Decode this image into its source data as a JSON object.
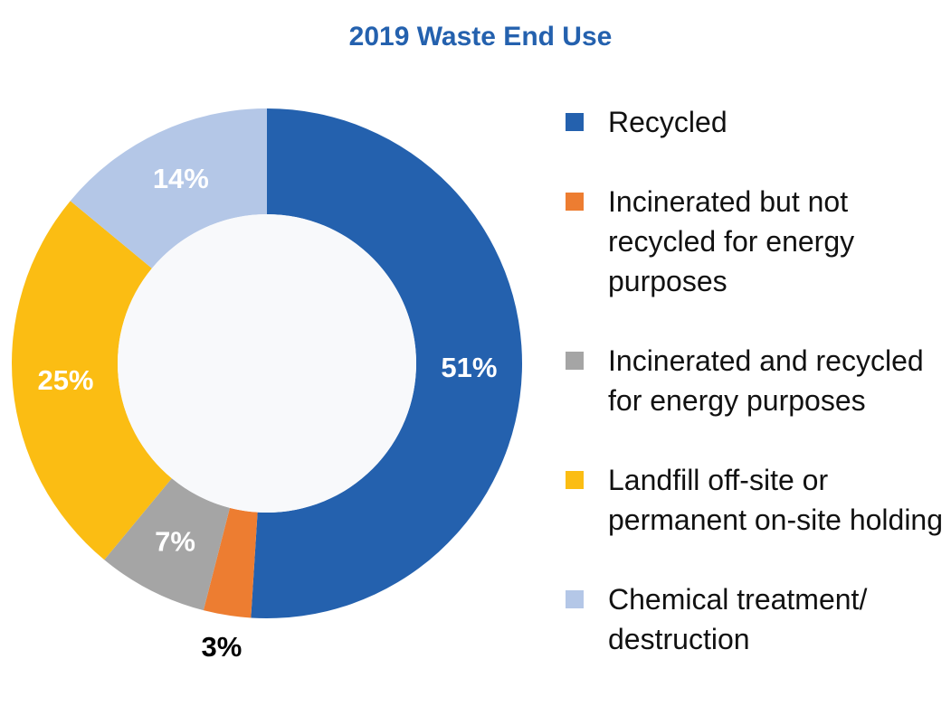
{
  "chart_data": {
    "type": "donut",
    "title": "2019 Waste End Use",
    "categories": [
      "Recycled",
      "Incinerated but not recycled for energy purposes",
      "Incinerated and recycled for energy purposes",
      "Landfill off-site or permanent on-site holding",
      "Chemical treatment/ destruction"
    ],
    "values": [
      51,
      3,
      7,
      25,
      14
    ],
    "value_labels": [
      "51%",
      "3%",
      "7%",
      "25%",
      "14%"
    ],
    "colors": [
      "#2461ae",
      "#ed7d31",
      "#a5a5a5",
      "#fbbd13",
      "#b4c7e7"
    ],
    "legend": "right"
  }
}
